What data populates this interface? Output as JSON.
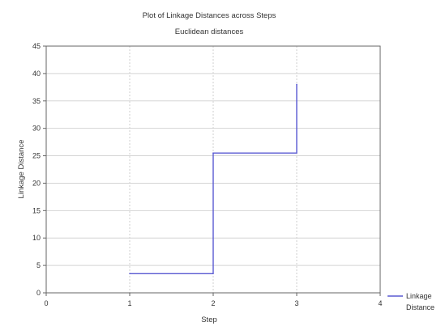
{
  "chart_data": {
    "type": "line",
    "title": "Plot of Linkage Distances across Steps",
    "subtitle": "Euclidean distances",
    "xlabel": "Step",
    "ylabel": "Linkage Distance",
    "xlim": [
      0,
      4
    ],
    "ylim": [
      0,
      45
    ],
    "x_ticks": [
      "0",
      "1",
      "2",
      "3",
      "4"
    ],
    "y_ticks": [
      "0",
      "5",
      "10",
      "15",
      "20",
      "25",
      "30",
      "35",
      "40",
      "45"
    ],
    "grid": true,
    "legend_position": "bottom-right",
    "series": [
      {
        "name": "Linkage Distance",
        "color": "#5a5ad2",
        "step": true,
        "points": [
          {
            "x": 1,
            "y": 3.5
          },
          {
            "x": 2,
            "y": 25.5
          },
          {
            "x": 3,
            "y": 38
          }
        ]
      }
    ]
  },
  "legend": {
    "line1": "Linkage",
    "line2": "Distance"
  }
}
